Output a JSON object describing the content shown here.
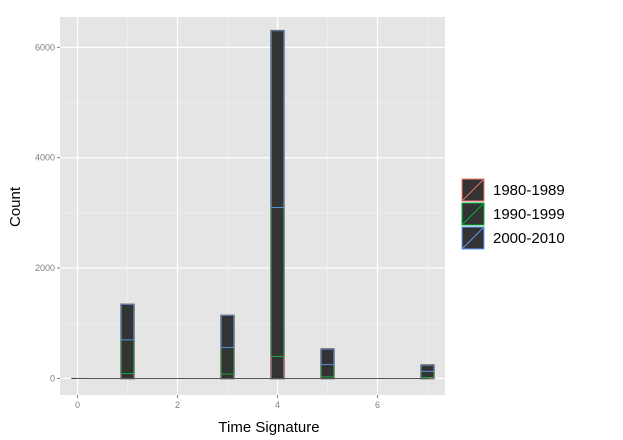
{
  "chart_data": {
    "type": "bar",
    "stacked": true,
    "xlabel": "Time Signature",
    "ylabel": "Count",
    "xlim": [
      -0.35,
      7.35
    ],
    "ylim": [
      -300,
      6550
    ],
    "x_ticks": [
      0,
      2,
      4,
      6
    ],
    "y_ticks": [
      0,
      2000,
      4000,
      6000
    ],
    "grid": true,
    "legend_position": "right",
    "bar_fill": "#333333",
    "panel_background": "#e5e5e5",
    "bars": [
      {
        "x": 0,
        "segments": [
          0,
          0,
          0
        ]
      },
      {
        "x": 1,
        "segments": [
          90,
          610,
          640
        ]
      },
      {
        "x": 3,
        "segments": [
          80,
          480,
          580
        ]
      },
      {
        "x": 4,
        "segments": [
          400,
          2700,
          3200
        ]
      },
      {
        "x": 5,
        "segments": [
          30,
          220,
          280
        ]
      },
      {
        "x": 7,
        "segments": [
          20,
          110,
          110
        ]
      }
    ],
    "series": [
      {
        "name": "1980-1989",
        "color": "#f8766d"
      },
      {
        "name": "1990-1999",
        "color": "#00ba38"
      },
      {
        "name": "2000-2010",
        "color": "#619cff"
      }
    ]
  }
}
